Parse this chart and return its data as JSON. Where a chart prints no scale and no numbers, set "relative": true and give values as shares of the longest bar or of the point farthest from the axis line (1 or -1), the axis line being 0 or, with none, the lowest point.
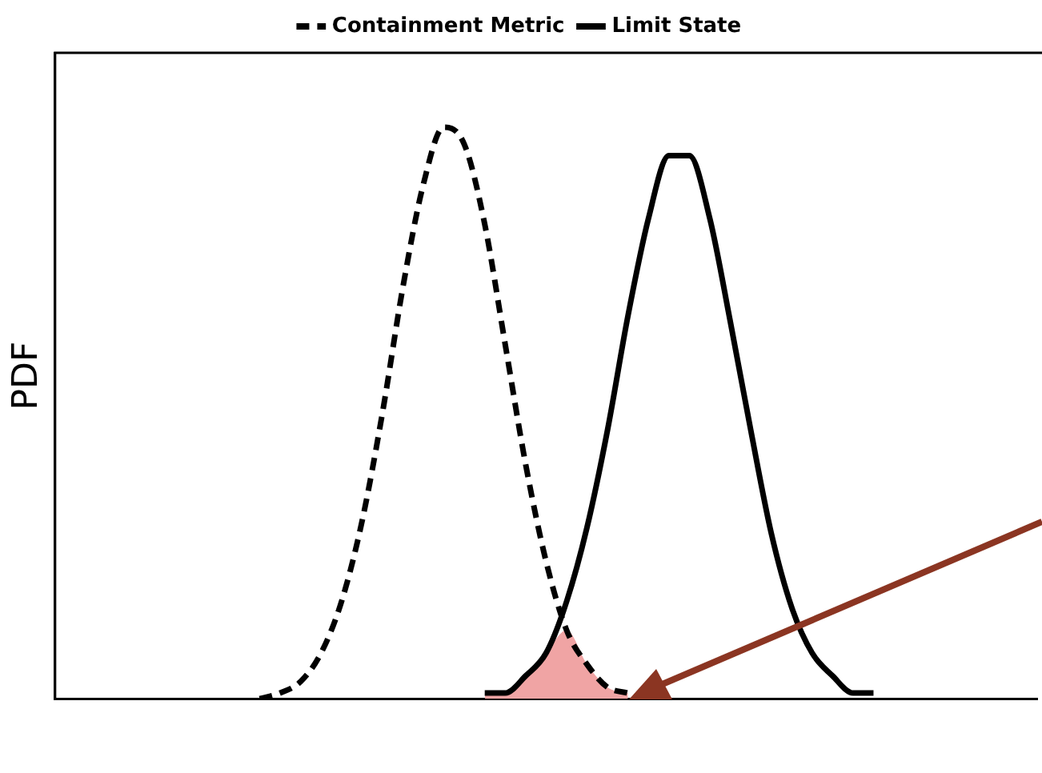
{
  "chart_data": {
    "type": "line",
    "ylabel": "PDF",
    "relative": true,
    "legend": "top",
    "grid": false,
    "marker": "none",
    "categories": [
      null,
      null,
      null,
      null,
      null,
      null,
      null,
      null,
      null,
      null,
      null,
      null,
      null,
      null,
      null,
      null,
      null,
      null,
      null,
      null,
      null,
      null,
      null,
      null,
      null,
      null,
      null,
      null,
      null,
      null,
      null,
      null,
      null,
      null,
      null,
      null,
      null,
      null,
      null,
      null,
      null,
      null,
      null,
      null,
      null,
      null,
      null,
      null,
      null
    ],
    "series": [
      {
        "name": "Containment Metric",
        "color": "#000000",
        "line_style": "dashed",
        "values": [
          null,
          null,
          null,
          null,
          null,
          null,
          null,
          null,
          null,
          null,
          0,
          0.01,
          0.03,
          0.08,
          0.17,
          0.31,
          0.5,
          0.72,
          0.9,
          1,
          0.97,
          0.83,
          0.62,
          0.41,
          0.24,
          0.12,
          0.06,
          0.02,
          0.01,
          null,
          null,
          null,
          null,
          null,
          null,
          null,
          null,
          null,
          null,
          null,
          null,
          null,
          null,
          null,
          null,
          null,
          null,
          null,
          null
        ]
      },
      {
        "name": "Limit State",
        "color": "#000000",
        "line_style": "solid",
        "values": [
          null,
          null,
          null,
          null,
          null,
          null,
          null,
          null,
          null,
          null,
          null,
          null,
          null,
          null,
          null,
          null,
          null,
          null,
          null,
          null,
          null,
          0.01,
          0.01,
          0.04,
          0.08,
          0.17,
          0.3,
          0.47,
          0.67,
          0.84,
          0.95,
          0.95,
          0.84,
          0.66,
          0.47,
          0.29,
          0.16,
          0.08,
          0.04,
          0.01,
          0.01,
          null,
          null,
          null,
          null,
          null,
          null,
          null,
          null
        ]
      },
      {
        "type": "area",
        "color": "#f0a4a4",
        "values": [
          null,
          null,
          null,
          null,
          null,
          null,
          null,
          null,
          null,
          null,
          null,
          null,
          null,
          null,
          null,
          null,
          null,
          null,
          null,
          null,
          null,
          0.01,
          0.01,
          0.04,
          0.08,
          0.12,
          0.06,
          0.02,
          0.01,
          null,
          null,
          null,
          null,
          null,
          null,
          null,
          null,
          null,
          null,
          null,
          null,
          null,
          null,
          null,
          null,
          null,
          null,
          null,
          null
        ]
      }
    ]
  }
}
